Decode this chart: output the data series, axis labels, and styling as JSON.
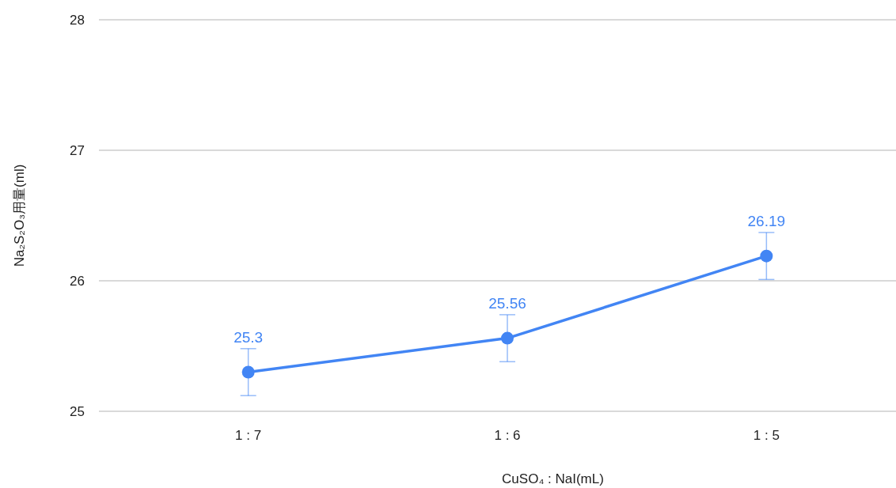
{
  "chart_data": {
    "type": "line",
    "xlabel": "CuSO₄ : NaI(mL)",
    "ylabel": "Na₂S₂O₃用量(ml)",
    "categories": [
      "1 : 7",
      "1 : 6",
      "1 : 5"
    ],
    "values": [
      25.3,
      25.56,
      26.19
    ],
    "errors": [
      0.18,
      0.18,
      0.18
    ],
    "color": "#4285f4",
    "marker": "circle",
    "data_labels": true,
    "grid": "y",
    "ylim": [
      25,
      28
    ],
    "yticks": [
      25,
      26,
      27,
      28
    ]
  }
}
